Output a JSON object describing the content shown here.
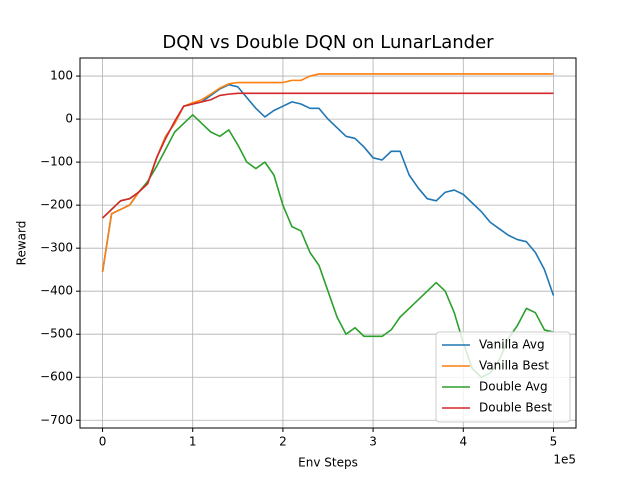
{
  "chart_data": {
    "type": "line",
    "title": "DQN vs Double DQN on LunarLander",
    "x_label": "Env Steps",
    "y_label": "Reward",
    "x_offset_label": "1e5",
    "x": [
      0,
      0.1,
      0.2,
      0.3,
      0.4,
      0.5,
      0.6,
      0.7,
      0.8,
      0.9,
      1.0,
      1.1,
      1.2,
      1.3,
      1.4,
      1.5,
      1.6,
      1.7,
      1.8,
      1.9,
      2.0,
      2.1,
      2.2,
      2.3,
      2.4,
      2.5,
      2.6,
      2.7,
      2.8,
      2.9,
      3.0,
      3.1,
      3.2,
      3.3,
      3.4,
      3.5,
      3.6,
      3.7,
      3.8,
      3.9,
      4.0,
      4.1,
      4.2,
      4.3,
      4.4,
      4.5,
      4.6,
      4.7,
      4.8,
      4.9,
      5.0
    ],
    "series": [
      {
        "name": "Vanilla Avg",
        "color": "#1f77b4",
        "values": [
          -355,
          -220,
          -210,
          -200,
          -170,
          -150,
          -90,
          -40,
          -10,
          30,
          35,
          40,
          55,
          70,
          80,
          75,
          50,
          25,
          5,
          20,
          30,
          40,
          35,
          25,
          25,
          0,
          -20,
          -40,
          -45,
          -65,
          -90,
          -95,
          -75,
          -75,
          -130,
          -160,
          -185,
          -190,
          -170,
          -165,
          -175,
          -195,
          -215,
          -240,
          -255,
          -270,
          -280,
          -285,
          -310,
          -350,
          -410
        ]
      },
      {
        "name": "Vanilla Best",
        "color": "#ff7f0e",
        "values": [
          -355,
          -220,
          -210,
          -200,
          -170,
          -150,
          -90,
          -40,
          -10,
          30,
          38,
          45,
          58,
          72,
          82,
          85,
          85,
          85,
          85,
          85,
          85,
          90,
          90,
          100,
          105,
          105,
          105,
          105,
          105,
          105,
          105,
          105,
          105,
          105,
          105,
          105,
          105,
          105,
          105,
          105,
          105,
          105,
          105,
          105,
          105,
          105,
          105,
          105,
          105,
          105,
          105
        ]
      },
      {
        "name": "Double Avg",
        "color": "#2ca02c",
        "values": [
          -230,
          -210,
          -190,
          -185,
          -170,
          -145,
          -110,
          -70,
          -30,
          -10,
          10,
          -10,
          -30,
          -40,
          -25,
          -60,
          -100,
          -115,
          -100,
          -130,
          -200,
          -250,
          -260,
          -310,
          -340,
          -400,
          -460,
          -500,
          -485,
          -505,
          -505,
          -505,
          -490,
          -460,
          -440,
          -420,
          -400,
          -380,
          -400,
          -450,
          -520,
          -580,
          -600,
          -590,
          -560,
          -510,
          -480,
          -440,
          -450,
          -490,
          -495
        ]
      },
      {
        "name": "Double Best",
        "color": "#d62728",
        "values": [
          -230,
          -210,
          -190,
          -185,
          -170,
          -150,
          -90,
          -45,
          -5,
          30,
          35,
          40,
          45,
          55,
          58,
          60,
          60,
          60,
          60,
          60,
          60,
          60,
          60,
          60,
          60,
          60,
          60,
          60,
          60,
          60,
          60,
          60,
          60,
          60,
          60,
          60,
          60,
          60,
          60,
          60,
          60,
          60,
          60,
          60,
          60,
          60,
          60,
          60,
          60,
          60,
          60
        ]
      }
    ],
    "xlim": [
      -0.25,
      5.25
    ],
    "ylim": [
      -718,
      142
    ],
    "xticks": [
      0,
      1,
      2,
      3,
      4,
      5
    ],
    "yticks": [
      {
        "value": -700,
        "label": "−700"
      },
      {
        "value": -600,
        "label": "−600"
      },
      {
        "value": -500,
        "label": "−500"
      },
      {
        "value": -400,
        "label": "−400"
      },
      {
        "value": -300,
        "label": "−300"
      },
      {
        "value": -200,
        "label": "−200"
      },
      {
        "value": -100,
        "label": "−100"
      },
      0,
      100
    ],
    "grid": true,
    "legend_position": "lower right"
  }
}
